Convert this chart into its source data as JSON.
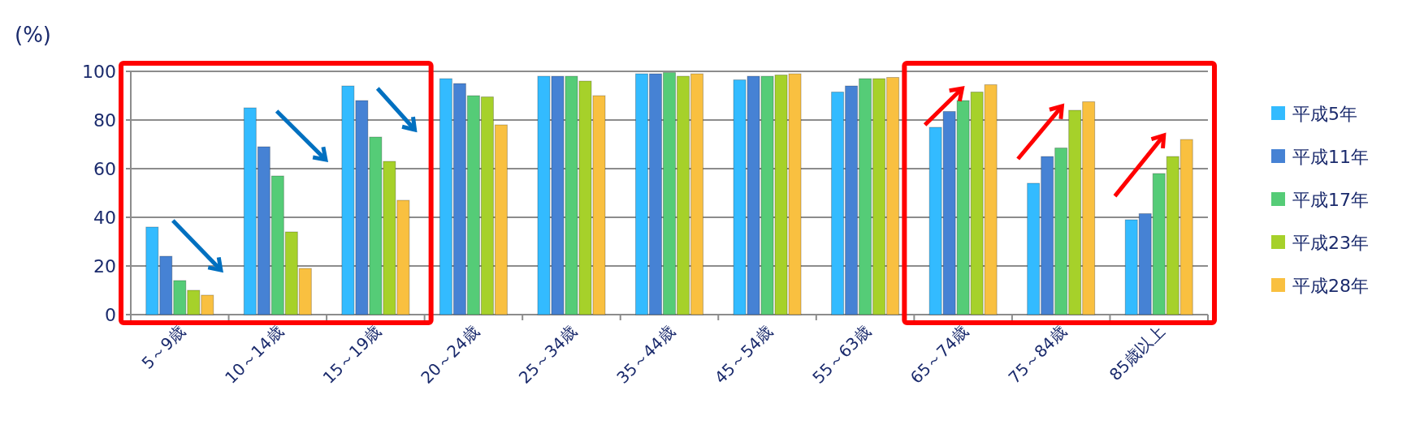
{
  "chart_data": {
    "type": "bar",
    "ylabel": "(%)",
    "categories": [
      "5～9歳",
      "10～14歳",
      "15～19歳",
      "20～24歳",
      "25～34歳",
      "35～44歳",
      "45～54歳",
      "55～63歳",
      "65～74歳",
      "75～84歳",
      "85歳以上"
    ],
    "series": [
      {
        "name": "平成5年",
        "color": "#33bbff",
        "values": [
          36,
          85,
          94,
          97,
          98,
          99,
          96.5,
          91.5,
          77,
          54,
          39
        ]
      },
      {
        "name": "平成11年",
        "color": "#4682d4",
        "values": [
          24,
          69,
          88,
          95,
          98,
          99,
          98,
          94,
          83.5,
          65,
          41.5
        ]
      },
      {
        "name": "平成17年",
        "color": "#55cc77",
        "values": [
          14,
          57,
          73,
          90,
          98,
          99.5,
          98,
          97,
          88,
          68.5,
          58
        ]
      },
      {
        "name": "平成23年",
        "color": "#a6d12a",
        "values": [
          10,
          34,
          63,
          89.5,
          96,
          98,
          98.5,
          97,
          91.5,
          84,
          65
        ]
      },
      {
        "name": "平成28年",
        "color": "#f9c040",
        "values": [
          8,
          19,
          47,
          78,
          90,
          99,
          99,
          97.5,
          94.5,
          87.5,
          72
        ]
      }
    ],
    "ylim": [
      0,
      100
    ],
    "yticks": [
      0,
      20,
      40,
      60,
      80,
      100
    ],
    "grid": "y",
    "legend": "right"
  }
}
